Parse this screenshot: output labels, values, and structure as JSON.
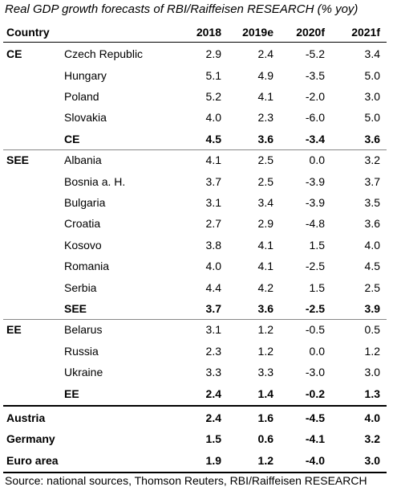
{
  "title": "Real GDP growth forecasts of RBI/Raiffeisen RESEARCH (% yoy)",
  "header": [
    "Country",
    "2018",
    "2019e",
    "2020f",
    "2021f"
  ],
  "groups": [
    {
      "label": "CE",
      "rows": [
        [
          "Czech Republic",
          "2.9",
          "2.4",
          "-5.2",
          "3.4"
        ],
        [
          "Hungary",
          "5.1",
          "4.9",
          "-3.5",
          "5.0"
        ],
        [
          "Poland",
          "5.2",
          "4.1",
          "-2.0",
          "3.0"
        ],
        [
          "Slovakia",
          "4.0",
          "2.3",
          "-6.0",
          "5.0"
        ]
      ],
      "total": [
        "CE",
        "4.5",
        "3.6",
        "-3.4",
        "3.6"
      ]
    },
    {
      "label": "SEE",
      "rows": [
        [
          "Albania",
          "4.1",
          "2.5",
          "0.0",
          "3.2"
        ],
        [
          "Bosnia a. H.",
          "3.7",
          "2.5",
          "-3.9",
          "3.7"
        ],
        [
          "Bulgaria",
          "3.1",
          "3.4",
          "-3.9",
          "3.5"
        ],
        [
          "Croatia",
          "2.7",
          "2.9",
          "-4.8",
          "3.6"
        ],
        [
          "Kosovo",
          "3.8",
          "4.1",
          "1.5",
          "4.0"
        ],
        [
          "Romania",
          "4.0",
          "4.1",
          "-2.5",
          "4.5"
        ],
        [
          "Serbia",
          "4.4",
          "4.2",
          "1.5",
          "2.5"
        ]
      ],
      "total": [
        "SEE",
        "3.7",
        "3.6",
        "-2.5",
        "3.9"
      ]
    },
    {
      "label": "EE",
      "rows": [
        [
          "Belarus",
          "3.1",
          "1.2",
          "-0.5",
          "0.5"
        ],
        [
          "Russia",
          "2.3",
          "1.2",
          "0.0",
          "1.2"
        ],
        [
          "Ukraine",
          "3.3",
          "3.3",
          "-3.0",
          "3.0"
        ]
      ],
      "total": [
        "EE",
        "2.4",
        "1.4",
        "-0.2",
        "1.3"
      ]
    }
  ],
  "aggregates": [
    [
      "Austria",
      "2.4",
      "1.6",
      "-4.5",
      "4.0"
    ],
    [
      "Germany",
      "1.5",
      "0.6",
      "-4.1",
      "3.2"
    ],
    [
      "Euro area",
      "1.9",
      "1.2",
      "-4.0",
      "3.0"
    ]
  ],
  "source": "Source: national sources, Thomson Reuters, RBI/Raiffeisen RESEARCH"
}
